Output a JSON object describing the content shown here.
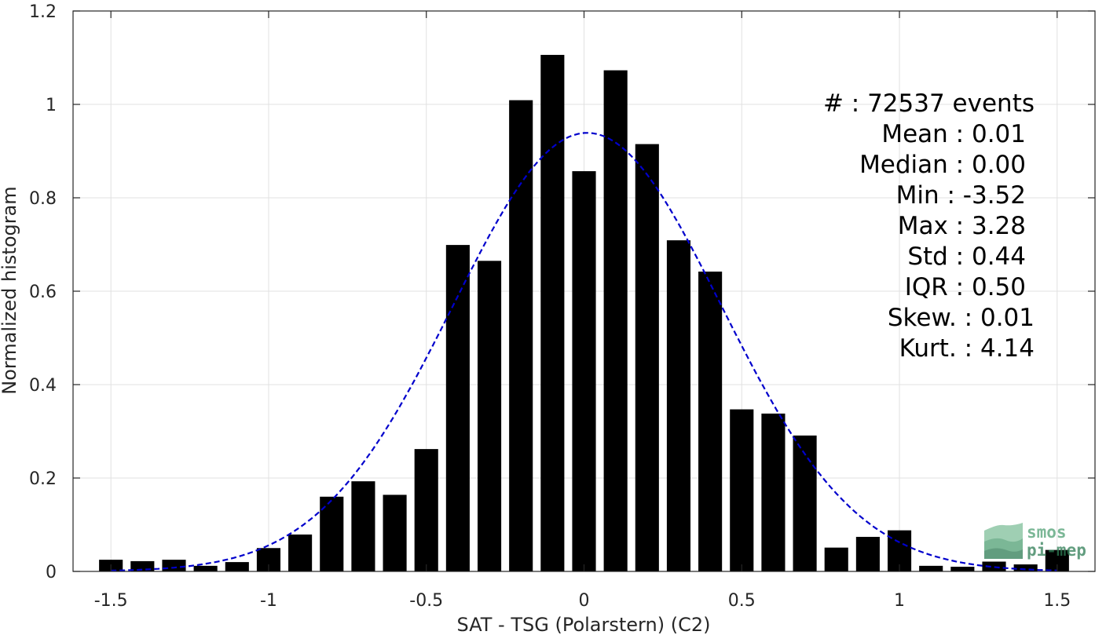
{
  "chart_data": {
    "type": "bar",
    "xlabel": "SAT - TSG (Polarstern) (C2)",
    "ylabel": "Normalized histogram",
    "xlim": [
      -1.62,
      1.62
    ],
    "ylim": [
      0,
      1.2
    ],
    "xticks": [
      -1.5,
      -1,
      -0.5,
      0,
      0.5,
      1,
      1.5
    ],
    "xtick_labels": [
      "-1.5",
      "-1",
      "-0.5",
      "0",
      "0.5",
      "1",
      "1.5"
    ],
    "yticks": [
      0,
      0.2,
      0.4,
      0.6,
      0.8,
      1,
      1.2
    ],
    "ytick_labels": [
      "0",
      "0.2",
      "0.4",
      "0.6",
      "0.8",
      "1",
      "1.2"
    ],
    "grid": true,
    "bar_color": "#000000",
    "bar_width": 0.075,
    "bins": [
      -1.5,
      -1.4,
      -1.3,
      -1.2,
      -1.1,
      -1.0,
      -0.9,
      -0.8,
      -0.7,
      -0.6,
      -0.5,
      -0.4,
      -0.3,
      -0.2,
      -0.1,
      0.0,
      0.1,
      0.2,
      0.3,
      0.4,
      0.5,
      0.6,
      0.7,
      0.8,
      0.9,
      1.0,
      1.1,
      1.2,
      1.3,
      1.4,
      1.5
    ],
    "values": [
      0.025,
      0.022,
      0.025,
      0.012,
      0.02,
      0.05,
      0.079,
      0.16,
      0.193,
      0.164,
      0.262,
      0.699,
      0.665,
      1.009,
      1.106,
      0.857,
      1.073,
      0.915,
      0.709,
      0.642,
      0.347,
      0.338,
      0.291,
      0.051,
      0.074,
      0.088,
      0.012,
      0.01,
      0.021,
      0.015,
      0.046
    ],
    "fit": {
      "type": "gaussian",
      "mean": 0.01,
      "std": 0.425,
      "peak": 0.939,
      "color": "#0000cc",
      "style": "dashed"
    }
  },
  "stats": [
    {
      "label": "#  : 72537 events"
    },
    {
      "label": "Mean : 0.01"
    },
    {
      "label": "Median : 0.00"
    },
    {
      "label": "Min : -3.52"
    },
    {
      "label": "Max : 3.28"
    },
    {
      "label": "Std : 0.44"
    },
    {
      "label": "IQR : 0.50"
    },
    {
      "label": "Skew. : 0.01"
    },
    {
      "label": "Kurt. : 4.14"
    }
  ],
  "logo": {
    "line1": "smos",
    "line2": "pi-mep",
    "color": "#2e8b57"
  }
}
